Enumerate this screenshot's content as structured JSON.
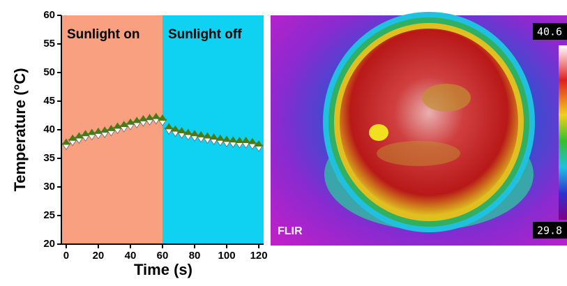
{
  "chart_data": {
    "type": "line",
    "x_label": "Time (s)",
    "y_label": "Temperature (°C)",
    "regions": [
      {
        "label": "Sunlight on",
        "color": "#f9a080",
        "x": [
          -3,
          60
        ]
      },
      {
        "label": "Sunlight off",
        "color": "#0fd2f2",
        "x": [
          60,
          123
        ]
      }
    ],
    "x": [
      0,
      4,
      8,
      12,
      16,
      20,
      24,
      28,
      32,
      36,
      40,
      44,
      48,
      52,
      56,
      60,
      64,
      68,
      72,
      76,
      80,
      84,
      88,
      92,
      96,
      100,
      104,
      108,
      112,
      116,
      120
    ],
    "series": [
      {
        "color": "#4a7a14",
        "values": [
          37.5,
          38.2,
          38.6,
          39.0,
          39.2,
          39.4,
          39.6,
          39.9,
          40.3,
          40.6,
          41.0,
          41.3,
          41.6,
          41.8,
          42.0,
          41.7,
          40.2,
          39.8,
          39.5,
          39.2,
          39.0,
          38.8,
          38.6,
          38.4,
          38.2,
          38.0,
          37.9,
          37.8,
          37.8,
          37.6,
          37.2
        ]
      }
    ],
    "xlim": [
      -3,
      123
    ],
    "xticks": [
      0,
      20,
      40,
      60,
      80,
      100,
      120
    ],
    "ylim": [
      20,
      60
    ],
    "yticks": [
      20,
      25,
      30,
      35,
      40,
      45,
      50,
      55,
      60
    ]
  },
  "thermal_image": {
    "max_label": "40.6",
    "min_label": "29.8",
    "logo": "FLIR"
  }
}
